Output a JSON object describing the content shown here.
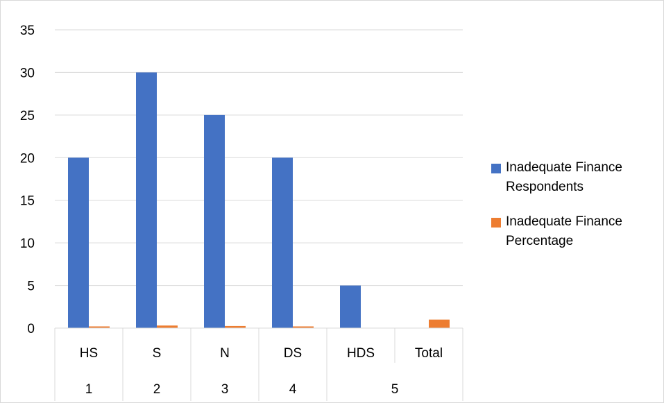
{
  "chart_data": {
    "type": "bar",
    "title": "",
    "xlabel": "",
    "ylabel": "",
    "ylim": [
      0,
      35
    ],
    "yticks": [
      "0",
      "5",
      "10",
      "15",
      "20",
      "25",
      "30",
      "35"
    ],
    "grid": true,
    "legend_position": "right",
    "categories": [
      "HS",
      "S",
      "N",
      "DS",
      "HDS",
      "Total"
    ],
    "category_groups": [
      "1",
      "2",
      "3",
      "4",
      "5"
    ],
    "series": [
      {
        "name": "Inadequate Finance Respondents",
        "color": "#4472c4",
        "values": [
          20,
          30,
          25,
          20,
          5,
          null
        ]
      },
      {
        "name": "Inadequate Finance Percentage",
        "color": "#ed7d31",
        "values": [
          0.2,
          0.3,
          0.25,
          0.2,
          null,
          1
        ]
      }
    ]
  }
}
